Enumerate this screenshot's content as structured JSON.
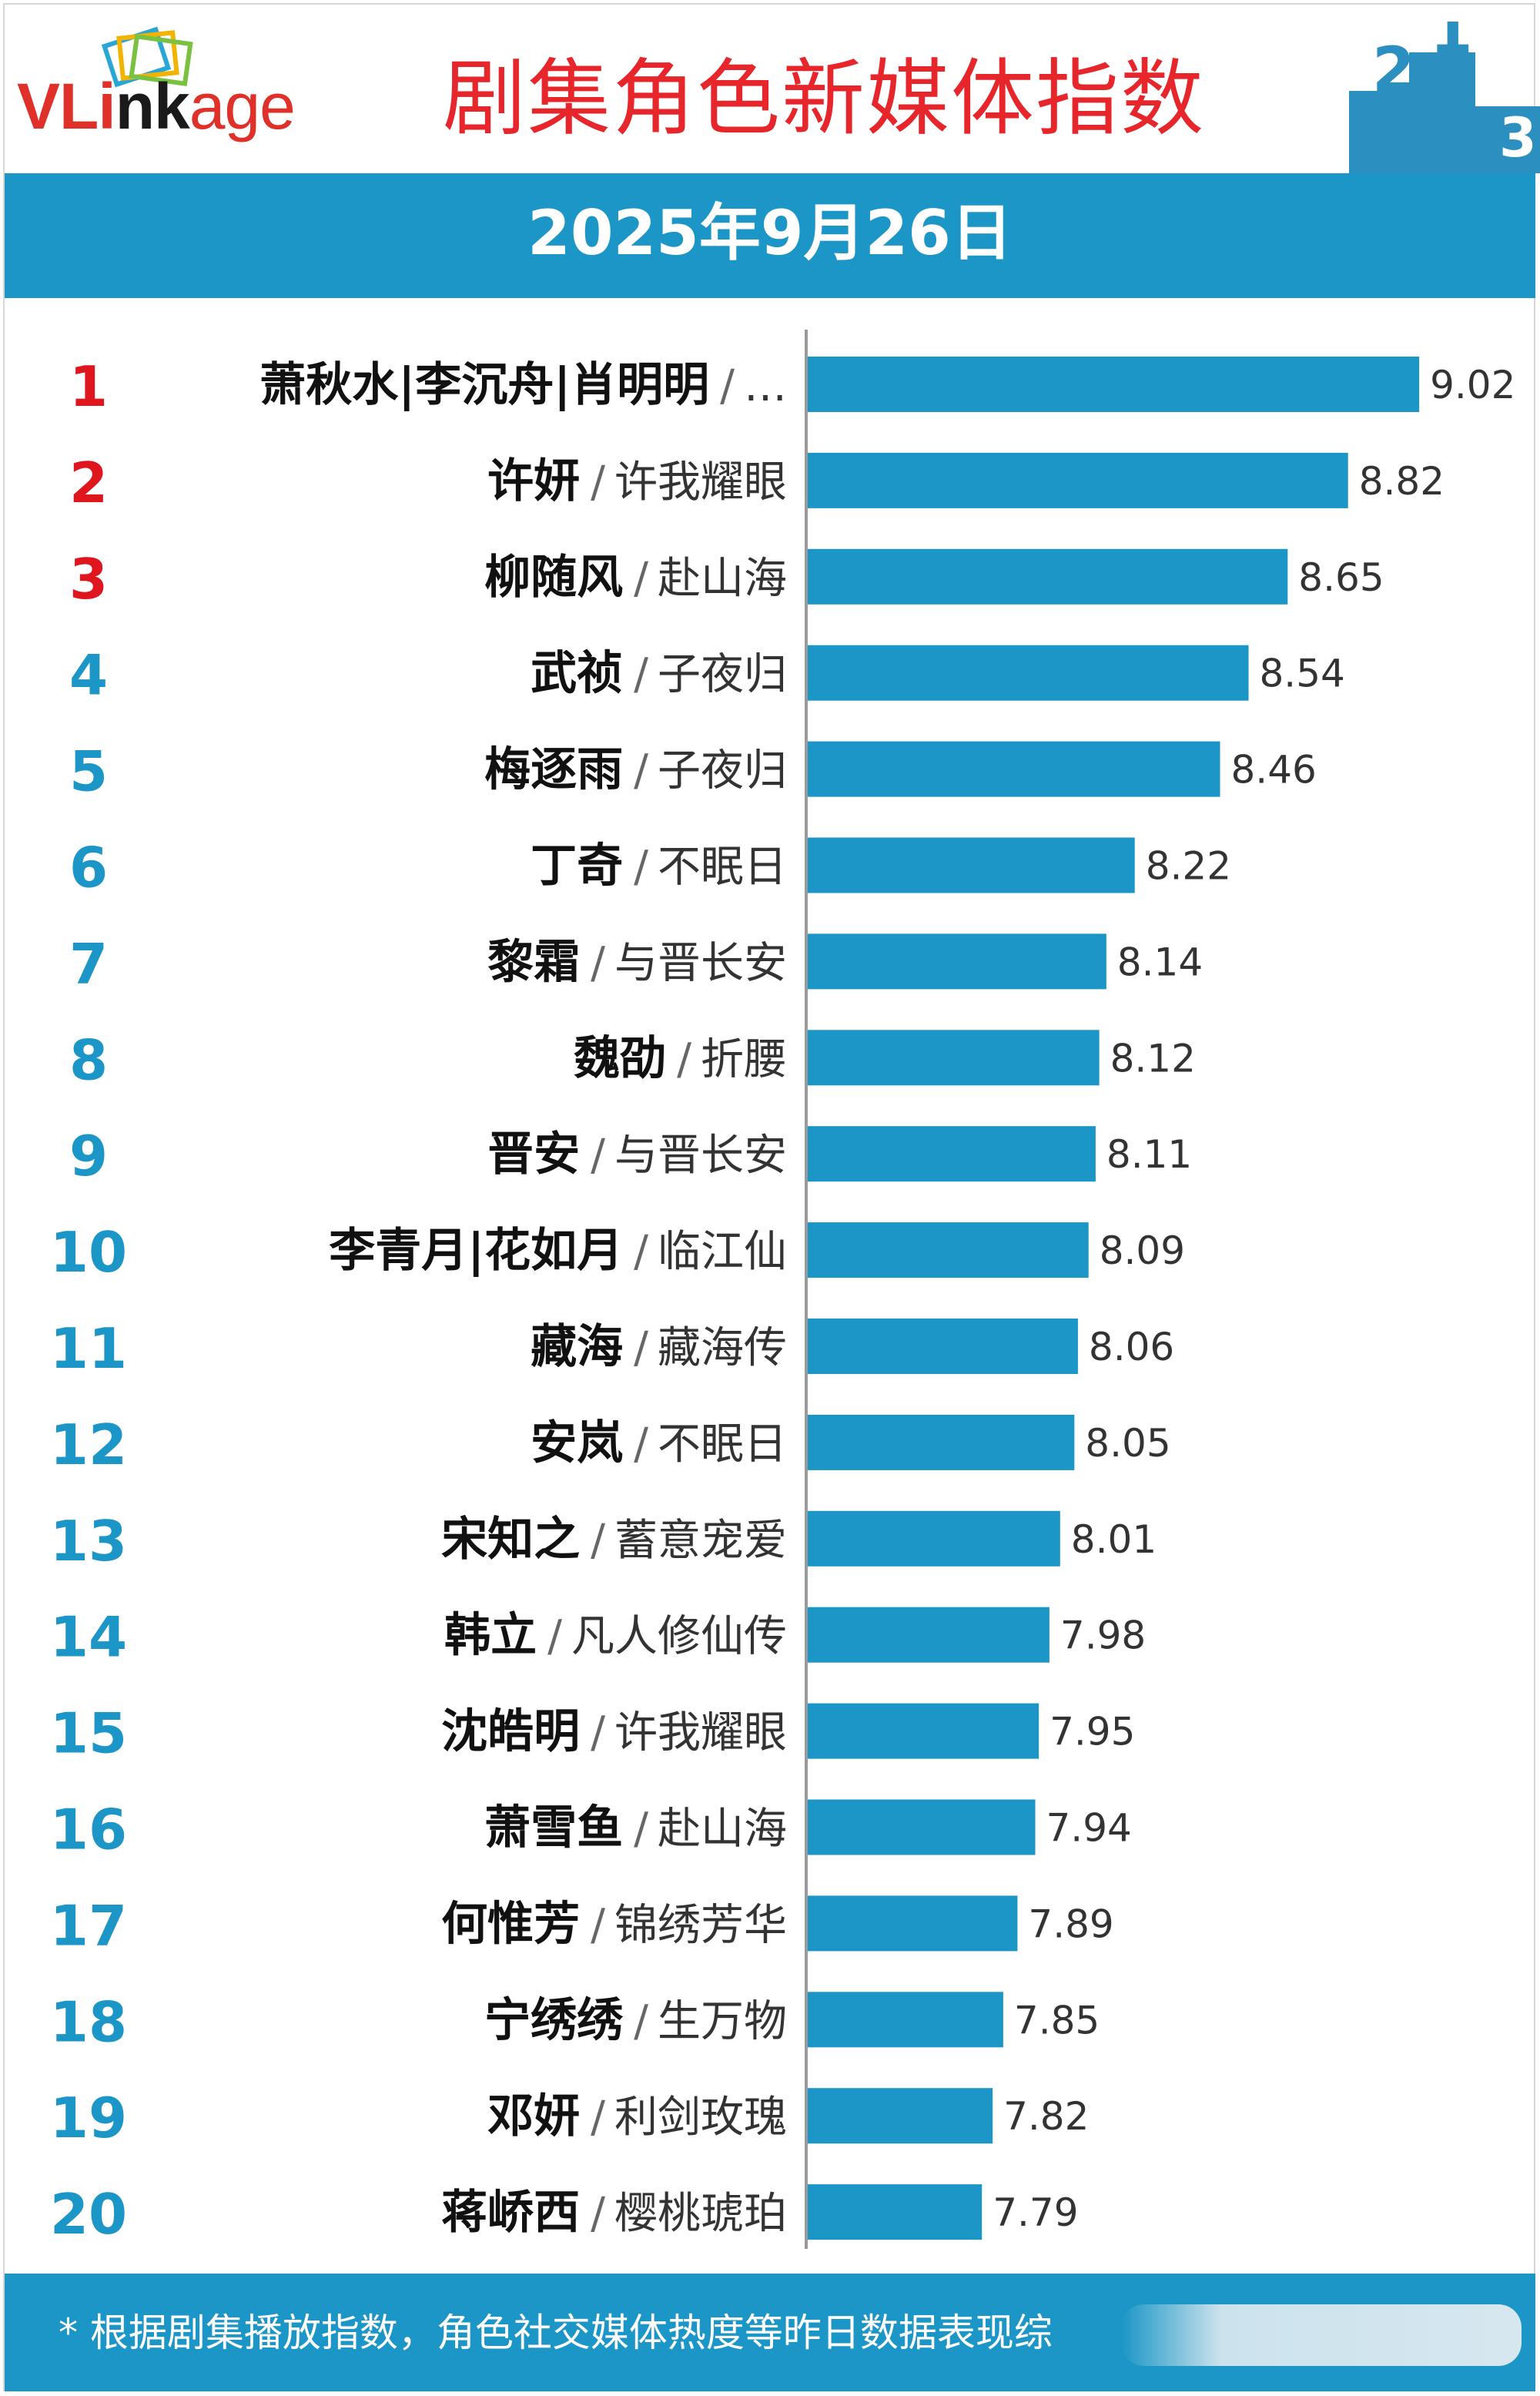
{
  "header": {
    "logo_text": "VLinkage",
    "title": "剧集角色新媒体指数"
  },
  "date": "2025年9月26日",
  "footer": {
    "note": "* 根据剧集播放指数，角色社交媒体热度等昨日数据表现综"
  },
  "colors": {
    "bar": "#1b96c6",
    "rank_top3": "#e0161f",
    "rank_other": "#1b96c6",
    "title": "#e6262b",
    "band": "#1b96c6"
  },
  "chart_data": {
    "type": "bar",
    "orientation": "horizontal",
    "xlim": [
      7.3,
      9.1
    ],
    "grid": false,
    "legend": "none",
    "rows": [
      {
        "rank": "1",
        "character": "萧秋水|李沉舟|肖明明",
        "drama": "…",
        "value": 9.02,
        "label": "9.02"
      },
      {
        "rank": "2",
        "character": "许妍",
        "drama": "许我耀眼",
        "value": 8.82,
        "label": "8.82"
      },
      {
        "rank": "3",
        "character": "柳随风",
        "drama": "赴山海",
        "value": 8.65,
        "label": "8.65"
      },
      {
        "rank": "4",
        "character": "武祯",
        "drama": "子夜归",
        "value": 8.54,
        "label": "8.54"
      },
      {
        "rank": "5",
        "character": "梅逐雨",
        "drama": "子夜归",
        "value": 8.46,
        "label": "8.46"
      },
      {
        "rank": "6",
        "character": "丁奇",
        "drama": "不眠日",
        "value": 8.22,
        "label": "8.22"
      },
      {
        "rank": "7",
        "character": "黎霜",
        "drama": "与晋长安",
        "value": 8.14,
        "label": "8.14"
      },
      {
        "rank": "8",
        "character": "魏劭",
        "drama": "折腰",
        "value": 8.12,
        "label": "8.12"
      },
      {
        "rank": "9",
        "character": "晋安",
        "drama": "与晋长安",
        "value": 8.11,
        "label": "8.11"
      },
      {
        "rank": "10",
        "character": "李青月|花如月",
        "drama": "临江仙",
        "value": 8.09,
        "label": "8.09"
      },
      {
        "rank": "11",
        "character": "藏海",
        "drama": "藏海传",
        "value": 8.06,
        "label": "8.06"
      },
      {
        "rank": "12",
        "character": "安岚",
        "drama": "不眠日",
        "value": 8.05,
        "label": "8.05"
      },
      {
        "rank": "13",
        "character": "宋知之",
        "drama": "蓄意宠爱",
        "value": 8.01,
        "label": "8.01"
      },
      {
        "rank": "14",
        "character": "韩立",
        "drama": "凡人修仙传",
        "value": 7.98,
        "label": "7.98"
      },
      {
        "rank": "15",
        "character": "沈皓明",
        "drama": "许我耀眼",
        "value": 7.95,
        "label": "7.95"
      },
      {
        "rank": "16",
        "character": "萧雪鱼",
        "drama": "赴山海",
        "value": 7.94,
        "label": "7.94"
      },
      {
        "rank": "17",
        "character": "何惟芳",
        "drama": "锦绣芳华",
        "value": 7.89,
        "label": "7.89"
      },
      {
        "rank": "18",
        "character": "宁绣绣",
        "drama": "生万物",
        "value": 7.85,
        "label": "7.85"
      },
      {
        "rank": "19",
        "character": "邓妍",
        "drama": "利剑玫瑰",
        "value": 7.82,
        "label": "7.82"
      },
      {
        "rank": "20",
        "character": "蒋峤西",
        "drama": "樱桃琥珀",
        "value": 7.79,
        "label": "7.79"
      }
    ]
  }
}
